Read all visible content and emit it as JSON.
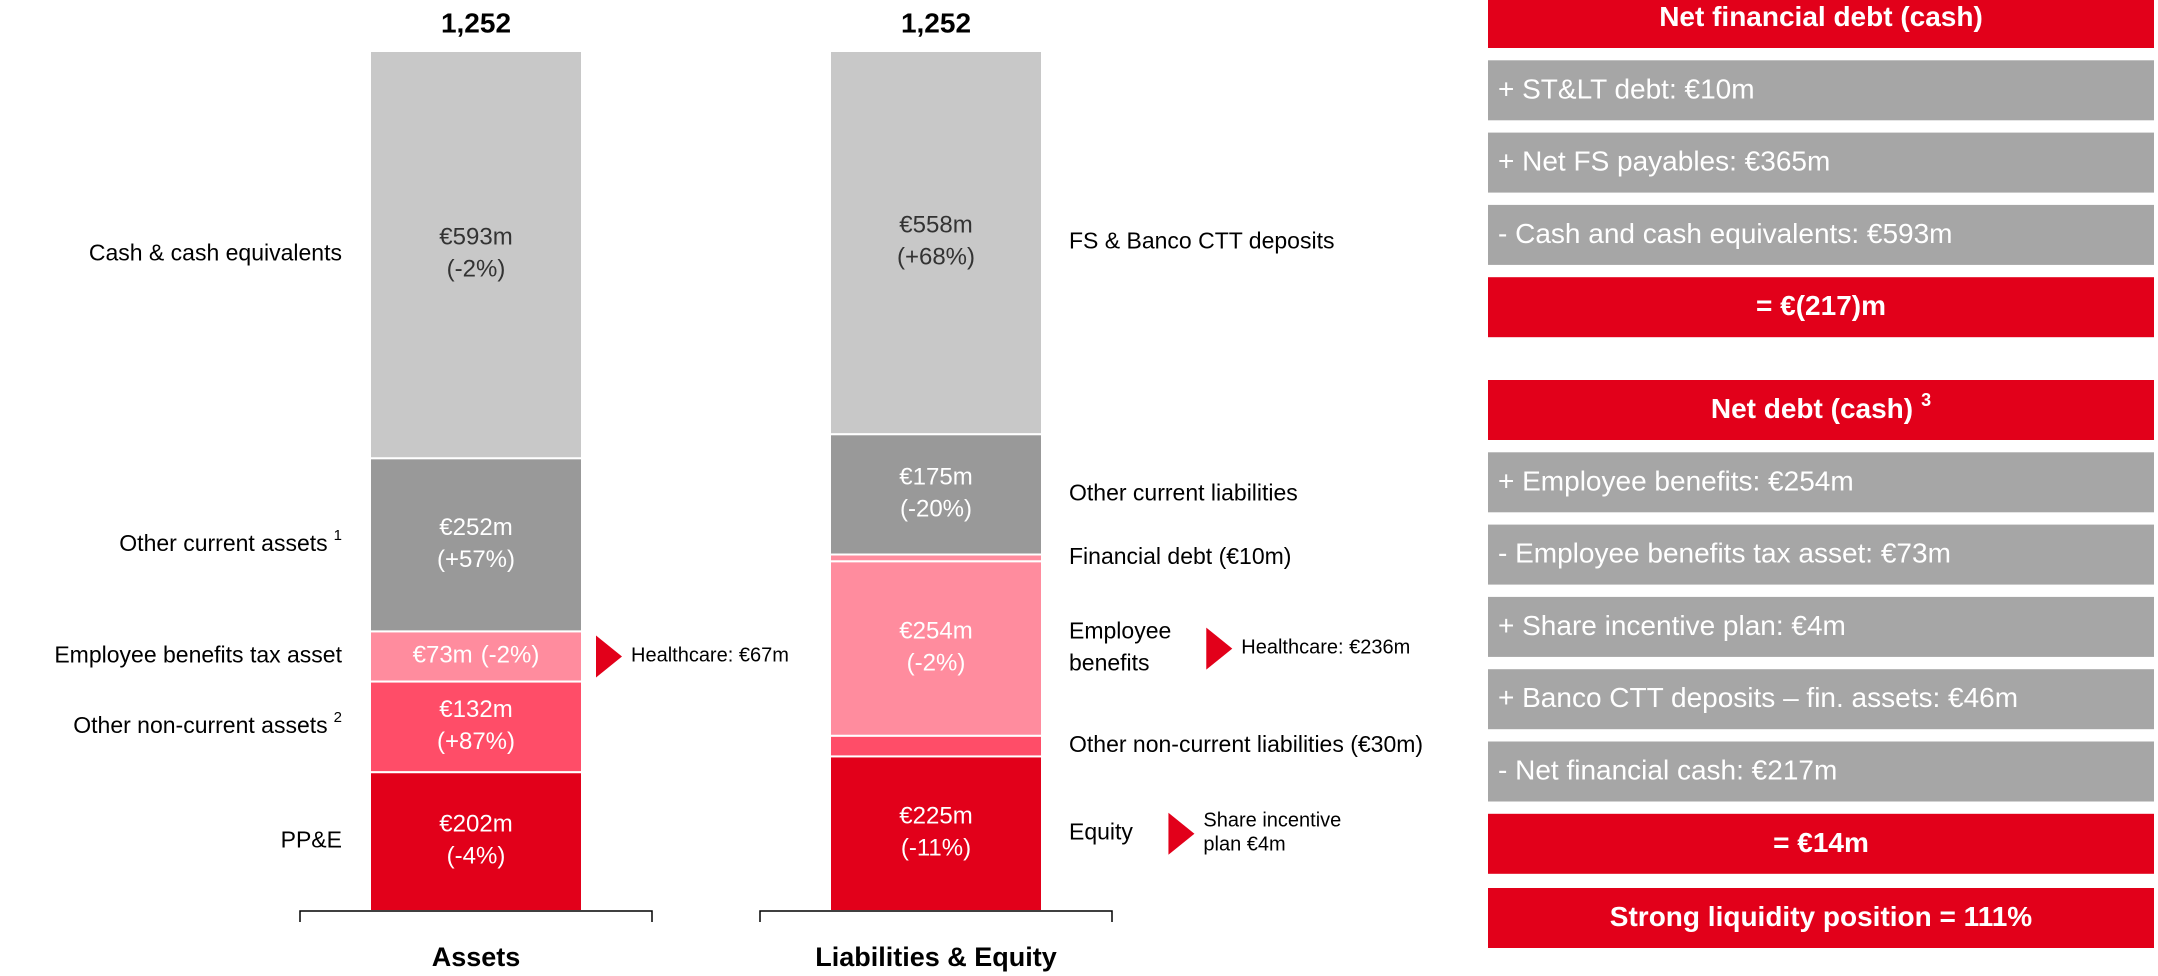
{
  "chart_data": {
    "type": "stacked_bar",
    "unit": "€m",
    "bars": [
      {
        "category": "Assets",
        "total": 1252,
        "total_label": "1,252",
        "segments": [
          {
            "name": [
              "Cash & cash equivalents"
            ],
            "value": 593,
            "value_label": "€593m",
            "change": "(-2%)",
            "color": "#c8c8c8",
            "label_color": "#333333"
          },
          {
            "name": [
              "Other current assets"
            ],
            "note": "1",
            "value": 252,
            "value_label": "€252m",
            "change": "(+57%)",
            "color": "#999999",
            "label_color": "#ffffff"
          },
          {
            "name": [
              "Employee benefits tax asset"
            ],
            "value": 73,
            "value_label": "€73m",
            "change": "(-2%)",
            "color": "#ff8c9e",
            "label_color": "#ffffff",
            "callout": [
              "Healthcare: €67m"
            ]
          },
          {
            "name": [
              "Other non-current assets"
            ],
            "note": "2",
            "value": 132,
            "value_label": "€132m",
            "change": "(+87%)",
            "color": "#ff4d68",
            "label_color": "#ffffff"
          },
          {
            "name": [
              "PP&E"
            ],
            "value": 202,
            "value_label": "€202m",
            "change": "(-4%)",
            "color": "#e2001a",
            "label_color": "#ffffff"
          }
        ]
      },
      {
        "category": "Liabilities & Equity",
        "total": 1252,
        "total_label": "1,252",
        "segments": [
          {
            "name": [
              "FS & Banco CTT deposits"
            ],
            "value": 558,
            "value_label": "€558m",
            "change": "(+68%)",
            "color": "#c8c8c8",
            "label_color": "#333333"
          },
          {
            "name": [
              "Other current liabilities"
            ],
            "value": 175,
            "value_label": "€175m",
            "change": "(-20%)",
            "color": "#999999",
            "label_color": "#ffffff"
          },
          {
            "name": [
              "Financial debt (€10m)"
            ],
            "value": 10,
            "color": "#ff8c9e",
            "label_color": "#ffffff"
          },
          {
            "name": [
              "Employee",
              "benefits"
            ],
            "value": 254,
            "value_label": "€254m",
            "change": "(-2%)",
            "color": "#ff8c9e",
            "label_color": "#ffffff",
            "callout": [
              "Healthcare: €236m"
            ]
          },
          {
            "name": [
              "Other non-current liabilities (€30m)"
            ],
            "value": 30,
            "color": "#ff4d68",
            "label_color": "#ffffff"
          },
          {
            "name": [
              "Equity"
            ],
            "value": 225,
            "value_label": "€225m",
            "change": "(-11%)",
            "color": "#e2001a",
            "label_color": "#ffffff",
            "callout": [
              "Share incentive",
              "plan €4m"
            ]
          }
        ]
      }
    ]
  },
  "panel": {
    "groups": [
      {
        "title": "Net financial debt (cash)",
        "items": [
          "+ ST&LT debt: €10m",
          "+ Net FS payables: €365m",
          "- Cash and cash equivalents: €593m"
        ],
        "result": "= €(217)m"
      },
      {
        "title": "Net debt (cash)",
        "note": "3",
        "items": [
          "+ Employee benefits: €254m",
          "- Employee benefits tax asset: €73m",
          "+ Share incentive plan: €4m",
          "+ Banco CTT deposits – fin. assets: €46m",
          "- Net financial cash: €217m"
        ],
        "result": "= €14m"
      }
    ],
    "footer": "Strong liquidity position = 111%"
  }
}
